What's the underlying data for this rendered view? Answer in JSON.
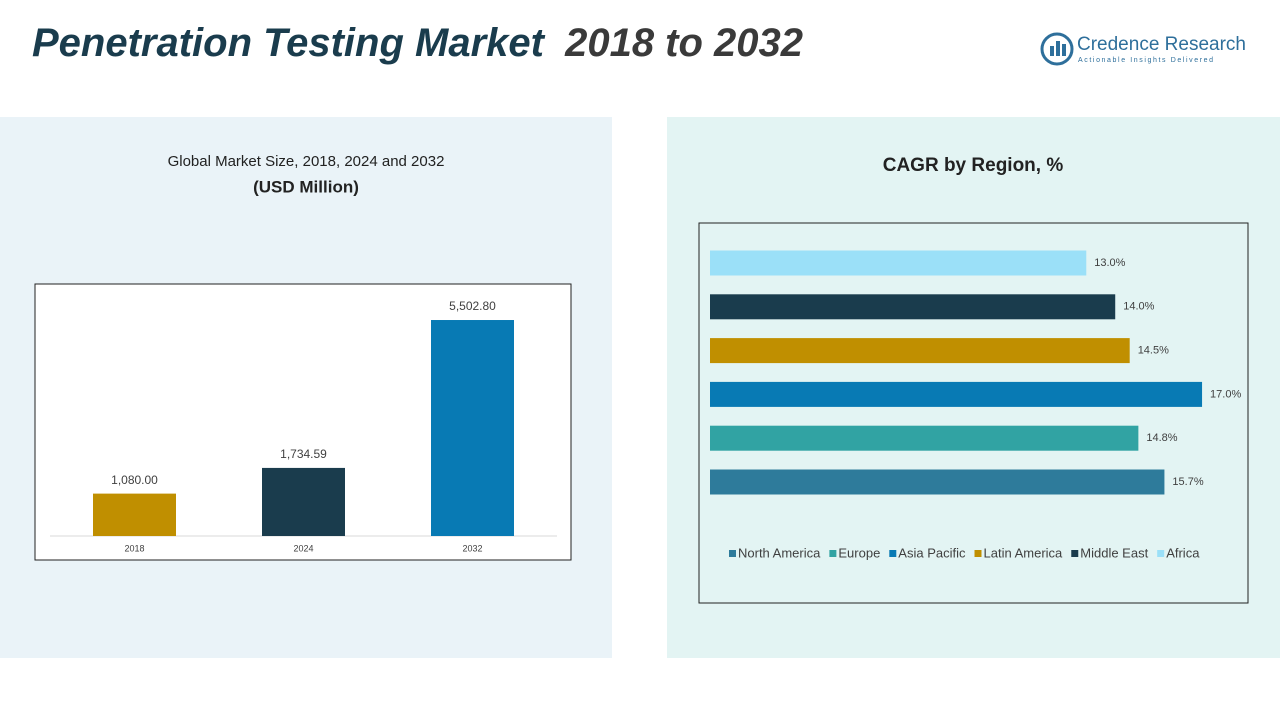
{
  "header": {
    "title_parts": [
      "Penetration Testing Market",
      "2018 to 2032"
    ],
    "brand": "Credence Research",
    "tagline": "Actionable Insights Delivered"
  },
  "chart_data": [
    {
      "type": "bar",
      "title": "Global Market Size, 2018, 2024 and 2032",
      "subtitle": "(USD Million)",
      "categories": [
        "2018",
        "2024",
        "2032"
      ],
      "values": [
        1080,
        1734.59,
        5502.8
      ],
      "value_labels": [
        "1,080.00",
        "1,734.59",
        "5,502.80"
      ],
      "colors": [
        "#c08f00",
        "#1a3c4d",
        "#087ab4"
      ],
      "ylim": [
        0,
        6000
      ]
    },
    {
      "type": "barh",
      "title": "CAGR by Region, %",
      "categories": [
        "North America",
        "Europe",
        "Asia Pacific",
        "Latin America",
        "Middle East",
        "Africa"
      ],
      "values": [
        15.7,
        14.8,
        17.0,
        14.5,
        14.0,
        13.0
      ],
      "value_labels": [
        "15.7%",
        "14.8%",
        "17.0%",
        "14.5%",
        "14.0%",
        "13.0%"
      ],
      "colors": [
        "#2e7b9b",
        "#31a3a3",
        "#087ab4",
        "#c08f00",
        "#1a3c4d",
        "#9be0f8"
      ],
      "xlim": [
        0,
        18
      ],
      "legend": "bottom"
    }
  ]
}
